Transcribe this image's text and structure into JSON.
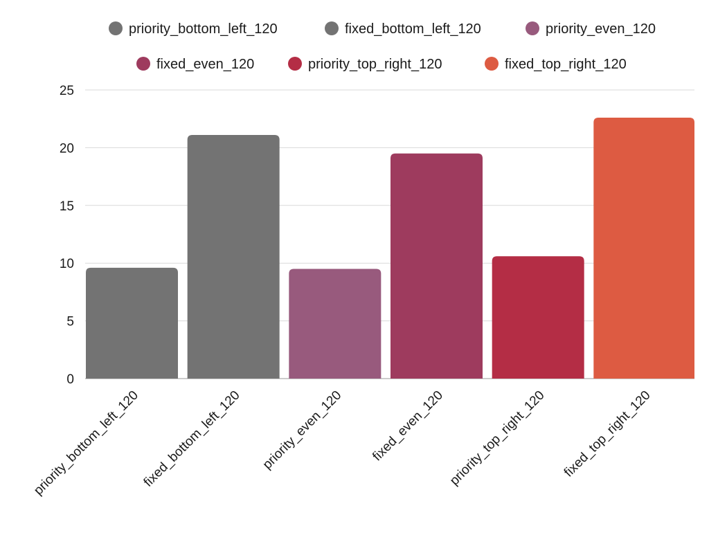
{
  "chart_data": {
    "type": "bar",
    "title": "",
    "xlabel": "",
    "ylabel": "",
    "categories": [
      "priority_bottom_left_120",
      "fixed_bottom_left_120",
      "priority_even_120",
      "fixed_even_120",
      "priority_top_right_120",
      "fixed_top_right_120"
    ],
    "values": [
      9.6,
      21.1,
      9.5,
      19.5,
      10.6,
      22.6
    ],
    "colors": [
      "#737373",
      "#737373",
      "#985a7d",
      "#9e3b5e",
      "#b42d45",
      "#dd5b42"
    ],
    "ylim": [
      0,
      25
    ],
    "yticks": [
      0,
      5,
      10,
      15,
      20,
      25
    ],
    "grid": true,
    "legend": {
      "placement": "top",
      "entries": [
        "priority_bottom_left_120",
        "fixed_bottom_left_120",
        "priority_even_120",
        "fixed_even_120",
        "priority_top_right_120",
        "fixed_top_right_120"
      ]
    }
  }
}
